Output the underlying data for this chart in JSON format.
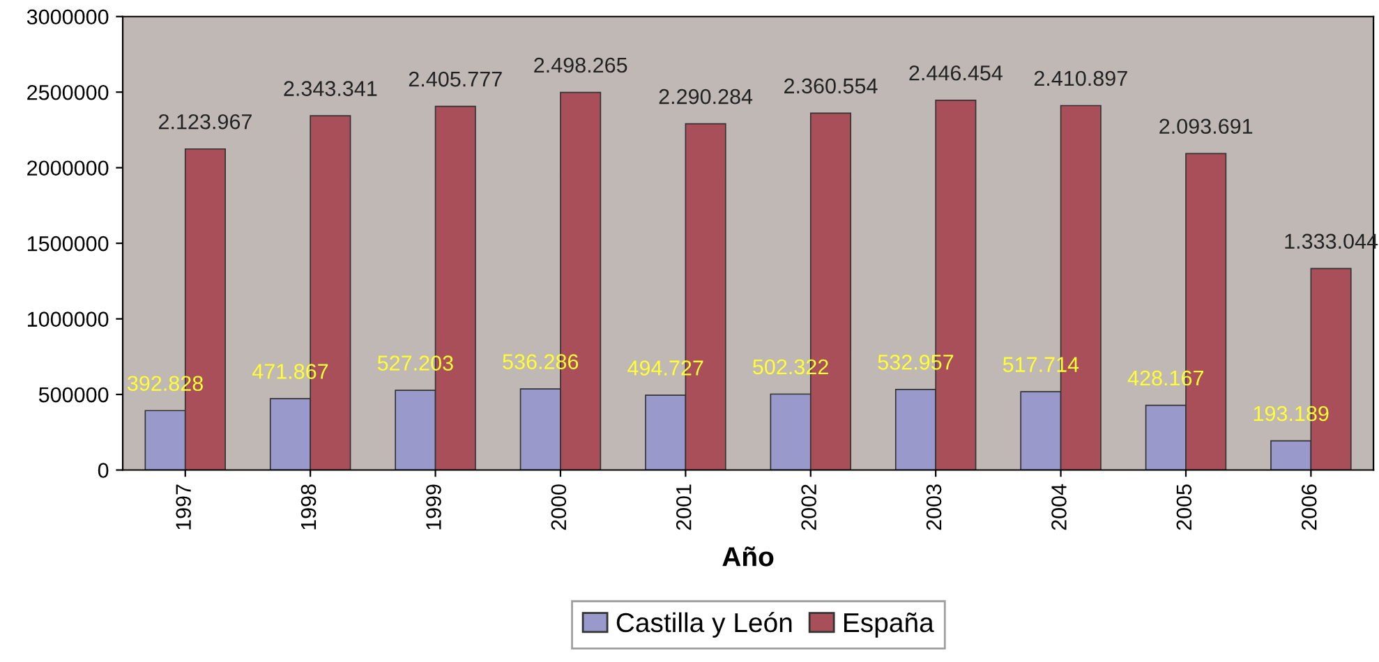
{
  "chart_data": {
    "type": "bar",
    "xlabel": "Año",
    "categories": [
      "1997",
      "1998",
      "1999",
      "2000",
      "2001",
      "2002",
      "2003",
      "2004",
      "2005",
      "2006"
    ],
    "series": [
      {
        "name": "Castilla y León",
        "color": "#9999cc",
        "values": [
          392828,
          471867,
          527203,
          536286,
          494727,
          502322,
          532957,
          517714,
          428167,
          193189
        ],
        "value_labels": [
          "392.828",
          "471.867",
          "527.203",
          "536.286",
          "494.727",
          "502.322",
          "532.957",
          "517.714",
          "428.167",
          "193.189"
        ]
      },
      {
        "name": "España",
        "color": "#a94f5a",
        "values": [
          2123967,
          2343341,
          2405777,
          2498265,
          2290284,
          2360554,
          2446454,
          2410897,
          2093691,
          1333044
        ],
        "value_labels": [
          "2.123.967",
          "2.343.341",
          "2.405.777",
          "2.498.265",
          "2.290.284",
          "2.360.554",
          "2.446.454",
          "2.410.897",
          "2.093.691",
          "1.333.044"
        ]
      }
    ],
    "ylim": [
      0,
      3000000
    ],
    "yticks": [
      0,
      500000,
      1000000,
      1500000,
      2000000,
      2500000,
      3000000
    ],
    "grid": false,
    "legend": "bottom"
  }
}
